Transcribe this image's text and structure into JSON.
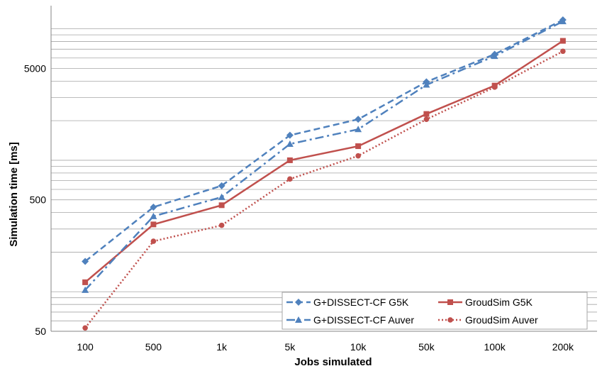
{
  "chart_data": {
    "type": "line",
    "title": "",
    "xlabel": "Jobs simulated",
    "ylabel": "Simulation time [ms]",
    "yscale": "log",
    "ylim": [
      50,
      15000
    ],
    "yticks": [
      50,
      500,
      5000
    ],
    "ytick_labels": [
      "50",
      "500",
      "5000"
    ],
    "categories": [
      "100",
      "500",
      "1k",
      "5k",
      "10k",
      "50k",
      "100k",
      "200k"
    ],
    "grid": true,
    "legend_position": "bottom-right",
    "series": [
      {
        "name": "G+DISSECT-CF G5K",
        "color": "#4f81bd",
        "style": "dashed",
        "marker": "diamond",
        "values": [
          170,
          440,
          640,
          1550,
          2050,
          3950,
          6400,
          11700
        ]
      },
      {
        "name": "GroudSim G5K",
        "color": "#c0504d",
        "style": "solid",
        "marker": "square",
        "values": [
          118,
          325,
          455,
          1000,
          1280,
          2250,
          3700,
          8100
        ]
      },
      {
        "name": "G+DISSECT-CF Auver",
        "color": "#4f81bd",
        "style": "dashdot",
        "marker": "triangle",
        "values": [
          103,
          375,
          525,
          1330,
          1720,
          3750,
          6200,
          11400
        ]
      },
      {
        "name": "GroudSim Auver",
        "color": "#c0504d",
        "style": "dotted",
        "marker": "circle",
        "values": [
          53,
          242,
          320,
          720,
          1080,
          2050,
          3600,
          6750
        ]
      }
    ]
  }
}
